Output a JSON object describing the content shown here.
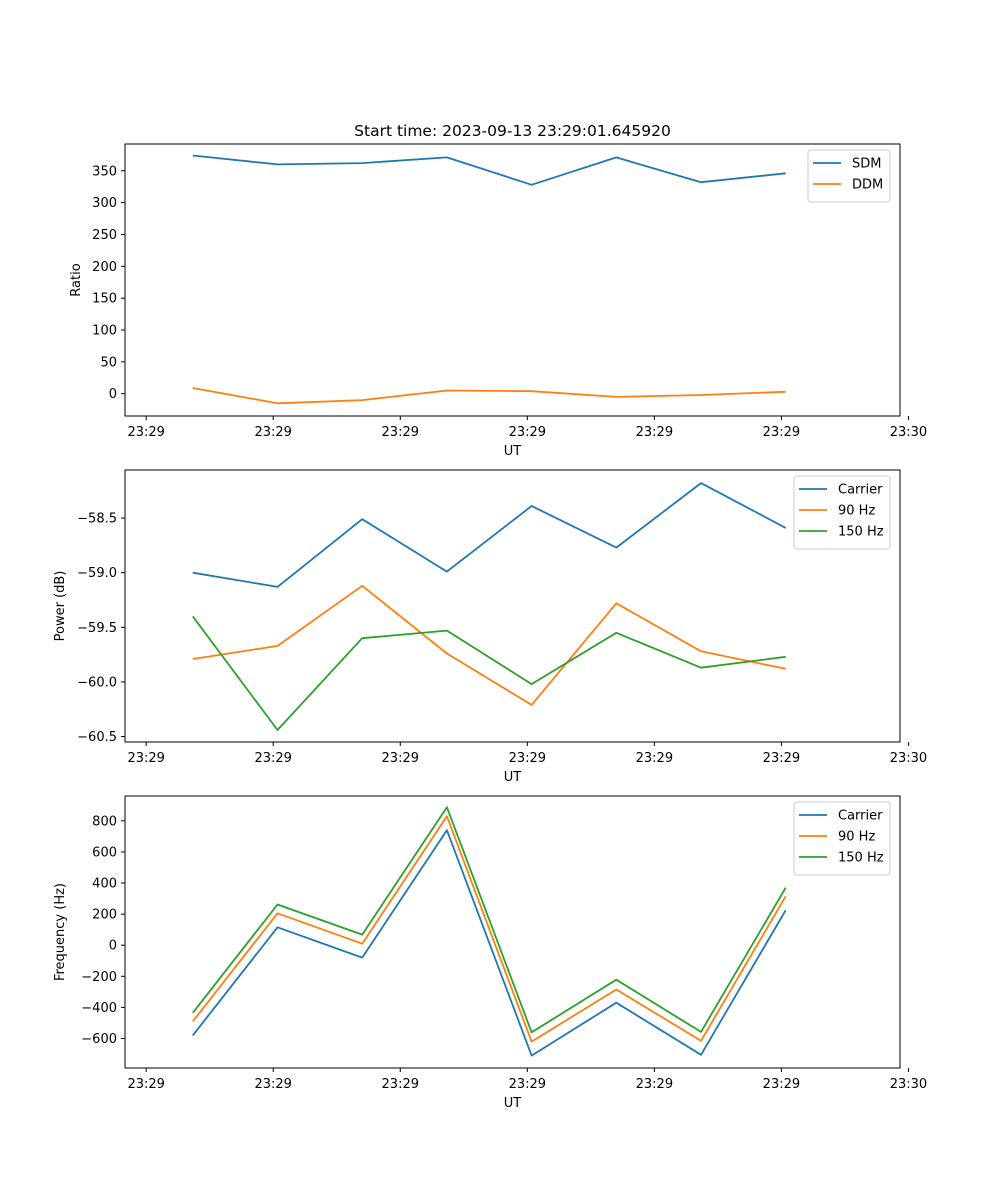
{
  "chart_data": [
    {
      "type": "line",
      "title": "Start time: 2023-09-13 23:29:01.645920",
      "xlabel": "UT",
      "ylabel": "Ratio",
      "x": [
        1,
        2,
        3,
        4,
        5,
        6,
        7,
        8
      ],
      "xlim": [
        0.2,
        9.35
      ],
      "ylim": [
        -35,
        392
      ],
      "yticks": [
        0,
        50,
        100,
        150,
        200,
        250,
        300,
        350
      ],
      "ytick_labels": [
        "0",
        "50",
        "100",
        "150",
        "200",
        "250",
        "300",
        "350"
      ],
      "xticks": [
        0.45,
        1.95,
        3.45,
        4.95,
        6.45,
        7.95,
        9.45
      ],
      "xtick_labels": [
        "23:29",
        "23:29",
        "23:29",
        "23:29",
        "23:29",
        "23:29",
        "23:30"
      ],
      "legend": "upper right",
      "series": [
        {
          "name": "SDM",
          "color": "#1f77b4",
          "values": [
            374,
            360,
            362,
            371,
            328,
            371,
            332,
            346
          ]
        },
        {
          "name": "DDM",
          "color": "#ff7f0e",
          "values": [
            9,
            -15,
            -10,
            5,
            4,
            -5,
            -2,
            3
          ]
        }
      ]
    },
    {
      "type": "line",
      "title": "",
      "xlabel": "UT",
      "ylabel": "Power (dB)",
      "x": [
        1,
        2,
        3,
        4,
        5,
        6,
        7,
        8
      ],
      "xlim": [
        0.2,
        9.35
      ],
      "ylim": [
        -60.55,
        -58.06
      ],
      "yticks": [
        -60.5,
        -60.0,
        -59.5,
        -59.0,
        -58.5
      ],
      "ytick_labels": [
        "−60.5",
        "−60.0",
        "−59.5",
        "−59.0",
        "−58.5"
      ],
      "xticks": [
        0.45,
        1.95,
        3.45,
        4.95,
        6.45,
        7.95,
        9.45
      ],
      "xtick_labels": [
        "23:29",
        "23:29",
        "23:29",
        "23:29",
        "23:29",
        "23:29",
        "23:30"
      ],
      "legend": "upper right",
      "series": [
        {
          "name": "Carrier",
          "color": "#1f77b4",
          "values": [
            -59.0,
            -59.13,
            -58.51,
            -58.99,
            -58.39,
            -58.77,
            -58.18,
            -58.59
          ]
        },
        {
          "name": "90 Hz",
          "color": "#ff7f0e",
          "values": [
            -59.79,
            -59.67,
            -59.12,
            -59.74,
            -60.21,
            -59.28,
            -59.72,
            -59.88
          ]
        },
        {
          "name": "150 Hz",
          "color": "#2ca02c",
          "values": [
            -59.4,
            -60.44,
            -59.6,
            -59.53,
            -60.02,
            -59.55,
            -59.87,
            -59.77
          ]
        }
      ]
    },
    {
      "type": "line",
      "title": "",
      "xlabel": "UT",
      "ylabel": "Frequency (Hz)",
      "x": [
        1,
        2,
        3,
        4,
        5,
        6,
        7,
        8
      ],
      "xlim": [
        0.2,
        9.35
      ],
      "ylim": [
        -790,
        960
      ],
      "yticks": [
        -600,
        -400,
        -200,
        0,
        200,
        400,
        600,
        800
      ],
      "ytick_labels": [
        "−600",
        "−400",
        "−200",
        "0",
        "200",
        "400",
        "600",
        "800"
      ],
      "xticks": [
        0.45,
        1.95,
        3.45,
        4.95,
        6.45,
        7.95,
        9.45
      ],
      "xtick_labels": [
        "23:29",
        "23:29",
        "23:29",
        "23:29",
        "23:29",
        "23:29",
        "23:30"
      ],
      "legend": "upper right",
      "series": [
        {
          "name": "Carrier",
          "color": "#1f77b4",
          "values": [
            -580,
            115,
            -80,
            740,
            -710,
            -370,
            -705,
            225
          ]
        },
        {
          "name": "90 Hz",
          "color": "#ff7f0e",
          "values": [
            -490,
            205,
            10,
            830,
            -620,
            -285,
            -615,
            315
          ]
        },
        {
          "name": "150 Hz",
          "color": "#2ca02c",
          "values": [
            -435,
            262,
            68,
            888,
            -560,
            -222,
            -558,
            370
          ]
        }
      ]
    }
  ]
}
